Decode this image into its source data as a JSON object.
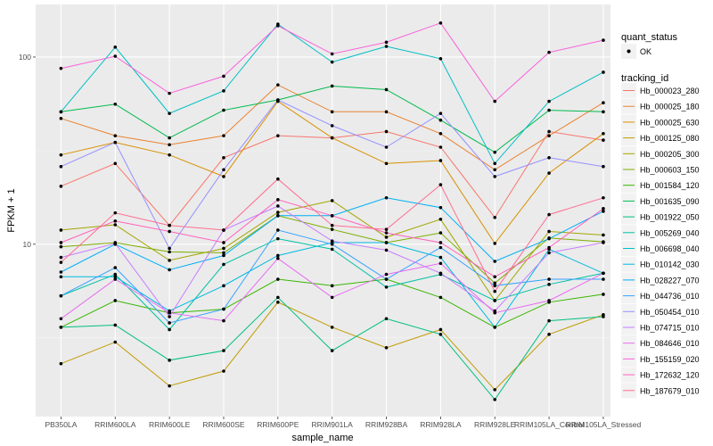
{
  "chart_data": {
    "type": "line",
    "xlabel": "sample_name",
    "ylabel": "FPKM + 1",
    "yscale": "log10",
    "ylim": [
      1.2,
      191
    ],
    "yticks": [
      10,
      100
    ],
    "ytick_labels": [
      "10",
      "100"
    ],
    "grid": true,
    "legend_position": "right",
    "categories": [
      "PB350LA",
      "RRIM600LA",
      "RRIM600LE",
      "RRIM600SE",
      "RRIM600PE",
      "RRIM901LA",
      "RRIM928BA",
      "RRIM928LA",
      "RRIM928LE",
      "RRIM105LA_Control",
      "RRIM105LA_Stressed"
    ],
    "shape_legend": {
      "title": "quant_status",
      "items": [
        "OK"
      ]
    },
    "color_legend_title": "tracking_id",
    "series": [
      {
        "name": "Hb_000023_280",
        "color": "#F8766D",
        "values": [
          20.4,
          27,
          12.6,
          29,
          38,
          37,
          40,
          33,
          13.9,
          40,
          36
        ]
      },
      {
        "name": "Hb_000025_180",
        "color": "#EA8331",
        "values": [
          47,
          38,
          34,
          38,
          71,
          51,
          51,
          39,
          25,
          38,
          57
        ]
      },
      {
        "name": "Hb_000025_630",
        "color": "#D89000",
        "values": [
          30,
          35,
          30,
          23,
          58,
          37,
          27,
          28,
          10.1,
          24,
          39
        ]
      },
      {
        "name": "Hb_000125_080",
        "color": "#C09B00",
        "values": [
          2.3,
          3.0,
          1.75,
          2.1,
          4.9,
          3.6,
          2.8,
          3.5,
          1.67,
          3.3,
          4.2
        ]
      },
      {
        "name": "Hb_000205_300",
        "color": "#A3A500",
        "values": [
          11.9,
          12.7,
          8.2,
          9.5,
          14.8,
          17.1,
          10.9,
          13.6,
          5.0,
          11.7,
          11.2
        ]
      },
      {
        "name": "Hb_000603_150",
        "color": "#7CAE00",
        "values": [
          9.7,
          10.2,
          9.1,
          9.0,
          14.2,
          12.0,
          10.2,
          11.5,
          6.2,
          10.8,
          10.3
        ]
      },
      {
        "name": "Hb_001584_120",
        "color": "#39B600",
        "values": [
          3.6,
          5.0,
          4.3,
          4.5,
          6.5,
          6.0,
          6.5,
          5.2,
          3.6,
          4.9,
          5.4
        ]
      },
      {
        "name": "Hb_001635_090",
        "color": "#00BB4E",
        "values": [
          51,
          56,
          37,
          52,
          59,
          70,
          67,
          46,
          31,
          52,
          51
        ]
      },
      {
        "name": "Hb_001922_050",
        "color": "#00BF7D",
        "values": [
          3.6,
          3.7,
          2.4,
          2.7,
          5.2,
          2.7,
          4.0,
          3.3,
          1.48,
          3.9,
          4.1
        ]
      },
      {
        "name": "Hb_005269_040",
        "color": "#00C1A3",
        "values": [
          5.3,
          6.9,
          3.5,
          7.8,
          10.7,
          9.4,
          5.9,
          6.9,
          5.0,
          6.1,
          7.0
        ]
      },
      {
        "name": "Hb_006698_040",
        "color": "#00BFC4",
        "values": [
          51,
          113,
          50,
          66,
          150,
          94,
          114,
          98,
          27,
          58,
          83
        ]
      },
      {
        "name": "Hb_010142_030",
        "color": "#00BAE0",
        "values": [
          6.7,
          6.7,
          4.4,
          6.0,
          8.7,
          10.2,
          10.2,
          8.5,
          3.6,
          9.4,
          7.0
        ]
      },
      {
        "name": "Hb_028227_070",
        "color": "#00B0F6",
        "values": [
          7.1,
          10,
          7.3,
          8.7,
          14.2,
          14.2,
          17.7,
          15.7,
          8.1,
          10.7,
          15.0
        ]
      },
      {
        "name": "Hb_044736_010",
        "color": "#35A2FF",
        "values": [
          5.3,
          7.5,
          3.8,
          4.5,
          11.9,
          10,
          6.5,
          9.6,
          6.0,
          6.5,
          6.5
        ]
      },
      {
        "name": "Hb_050454_010",
        "color": "#9590FF",
        "values": [
          26,
          35,
          9.5,
          25,
          59,
          43,
          33,
          50,
          23,
          29,
          26
        ]
      },
      {
        "name": "Hb_074715_010",
        "color": "#C77CFF",
        "values": [
          8.5,
          10.1,
          4.1,
          11.9,
          16.0,
          10.4,
          9.3,
          7.0,
          4.4,
          9.0,
          10.2
        ]
      },
      {
        "name": "Hb_084646_010",
        "color": "#E76BF3",
        "values": [
          4.0,
          6.5,
          4.3,
          3.9,
          8.4,
          5.2,
          6.9,
          7.9,
          4.3,
          5.0,
          7.0
        ]
      },
      {
        "name": "Hb_155159_020",
        "color": "#FA62DB",
        "values": [
          87,
          101,
          64,
          79,
          147,
          104,
          120,
          152,
          58,
          106,
          123
        ]
      },
      {
        "name": "Hb_172632_120",
        "color": "#FF62BC",
        "values": [
          10.2,
          13.3,
          11.7,
          10.2,
          17.3,
          14.2,
          11.5,
          10.2,
          6.7,
          9.6,
          15.5
        ]
      },
      {
        "name": "Hb_187679_010",
        "color": "#FF6C91",
        "values": [
          8.0,
          14.7,
          12.6,
          11.9,
          22.3,
          12.6,
          12.0,
          20.8,
          5.6,
          14.4,
          17.7
        ]
      }
    ]
  }
}
